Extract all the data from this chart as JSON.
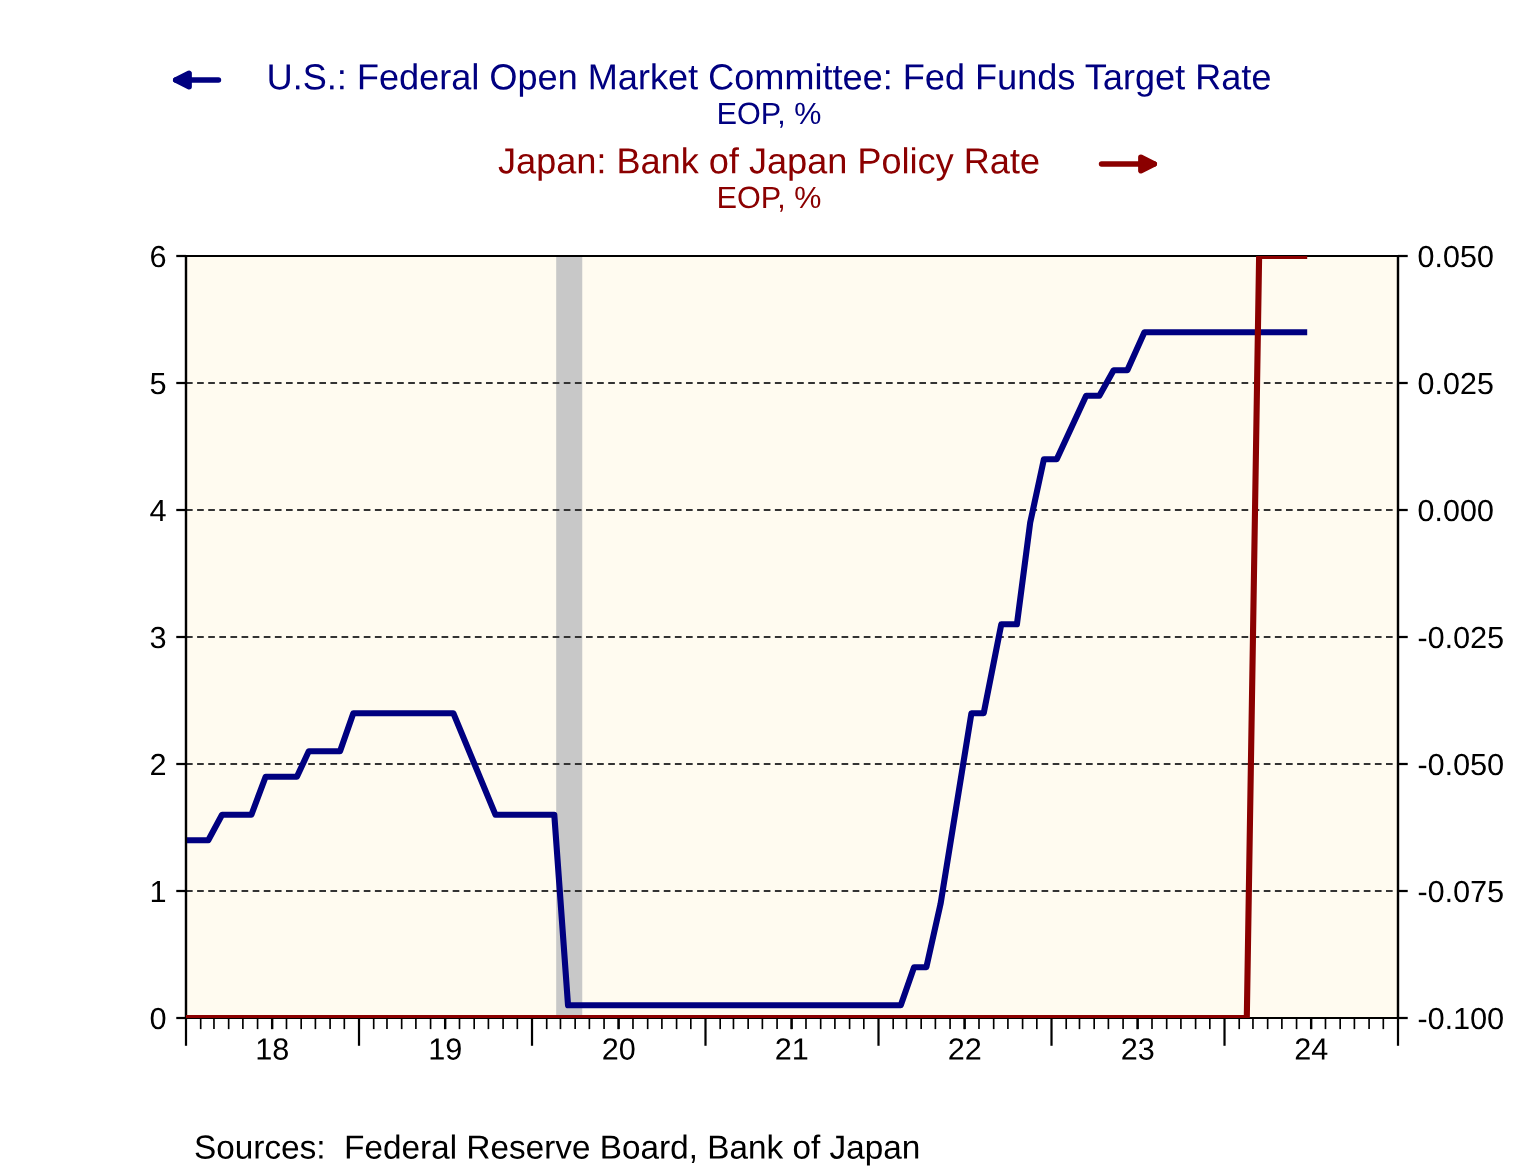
{
  "chart_data": {
    "type": "line",
    "annotations": [
      "EOP, %",
      "EOP, %",
      "Sources:  Federal Reserve Board, Bank of Japan"
    ],
    "series": [
      {
        "name": "U.S.: Federal Open Market Committee: Fed Funds Target Rate",
        "color": "#000080",
        "x": [
          "2018-01-01",
          "2018-02-17",
          "2018-03-18",
          "2018-05-19",
          "2018-06-18",
          "2018-08-23",
          "2018-09-17",
          "2018-11-22",
          "2018-12-20",
          "2019-07-19",
          "2019-10-16",
          "2020-02-17",
          "2020-03-17",
          "2022-02-17",
          "2022-03-17",
          "2022-04-12",
          "2022-05-12",
          "2022-07-16",
          "2022-08-11",
          "2022-09-17",
          "2022-10-20",
          "2022-11-17",
          "2022-12-16",
          "2023-01-12",
          "2023-03-15",
          "2023-04-12",
          "2023-05-12",
          "2023-06-10",
          "2023-07-16",
          "2024-06-17"
        ],
        "values": [
          1.4,
          1.4,
          1.6,
          1.6,
          1.9,
          1.9,
          2.1,
          2.1,
          2.4,
          2.4,
          1.6,
          1.6,
          0.1,
          0.1,
          0.4,
          0.4,
          0.9,
          2.4,
          2.4,
          3.1,
          3.1,
          3.9,
          4.4,
          4.4,
          4.9,
          4.9,
          5.1,
          5.1,
          5.4,
          5.4
        ]
      },
      {
        "name": "Japan: Bank of Japan Policy Rate",
        "color": "#8b0000",
        "axis": "y2",
        "x": [
          "2018-01-01",
          "2024-02-17",
          "2024-03-14",
          "2024-06-17"
        ],
        "values": [
          -0.1,
          -0.1,
          0.05,
          0.05
        ]
      }
    ],
    "xlim": [
      "2018-01-01",
      "2025-01-01"
    ],
    "xticks": [
      {
        "value": "2018-01-01",
        "label": null
      },
      {
        "value": "2018-07-02",
        "label": "18"
      },
      {
        "value": "2019-01-01",
        "label": null
      },
      {
        "value": "2019-07-02",
        "label": "19"
      },
      {
        "value": "2020-01-01",
        "label": null
      },
      {
        "value": "2020-07-02",
        "label": "20"
      },
      {
        "value": "2021-01-01",
        "label": null
      },
      {
        "value": "2021-07-02",
        "label": "21"
      },
      {
        "value": "2022-01-01",
        "label": null
      },
      {
        "value": "2022-07-02",
        "label": "22"
      },
      {
        "value": "2023-01-01",
        "label": null
      },
      {
        "value": "2023-07-02",
        "label": "23"
      },
      {
        "value": "2024-01-01",
        "label": null
      },
      {
        "value": "2024-07-02",
        "label": "24"
      },
      {
        "value": "2025-01-01",
        "label": null
      }
    ],
    "ylim": [
      0,
      6
    ],
    "yticks": [
      0,
      1,
      2,
      3,
      4,
      5,
      6
    ],
    "y2lim": [
      -0.1,
      0.05
    ],
    "y2ticks": [
      {
        "value": -0.1,
        "label": "-0.100"
      },
      {
        "value": -0.075,
        "label": "-0.075"
      },
      {
        "value": -0.05,
        "label": "-0.050"
      },
      {
        "value": -0.025,
        "label": "-0.025"
      },
      {
        "value": 0,
        "label": "0.000"
      },
      {
        "value": 0.025,
        "label": "0.025"
      },
      {
        "value": 0.05,
        "label": "0.050"
      }
    ],
    "bands": [
      {
        "axis": "x",
        "from": "2020-02-21",
        "to": "2020-04-16",
        "color": "#c8c8c8"
      }
    ],
    "grid": "y",
    "legend": "top",
    "line_style": "solid",
    "marker": "none"
  }
}
